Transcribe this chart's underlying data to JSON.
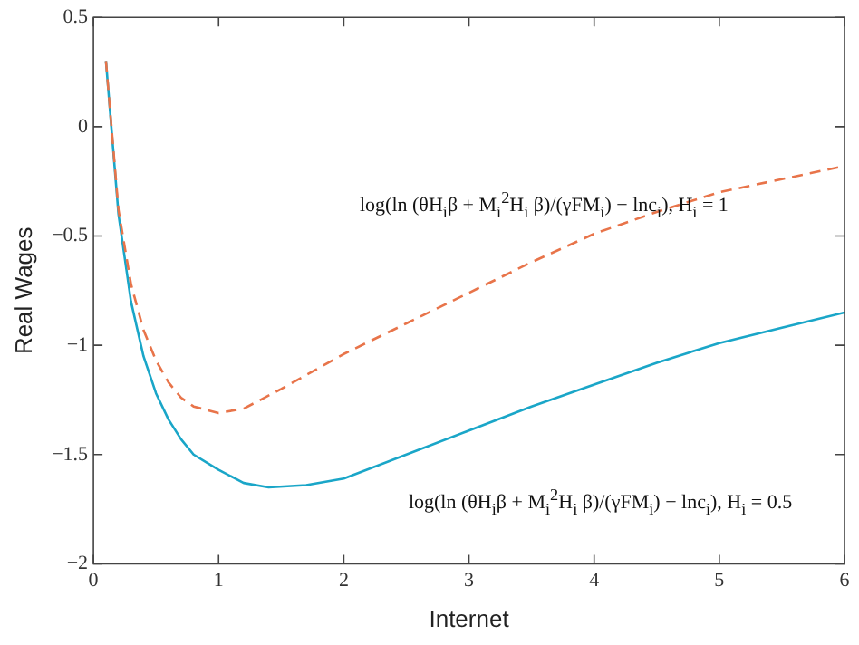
{
  "chart_data": {
    "type": "line",
    "xlabel": "Internet",
    "ylabel": "Real Wages",
    "xlim": [
      0,
      6
    ],
    "xticks": [
      0,
      1,
      2,
      3,
      4,
      5,
      6
    ],
    "ylim": [
      -2,
      0.5
    ],
    "yticks": [
      {
        "value": -2,
        "label": "−2"
      },
      {
        "value": -1.5,
        "label": "−1.5"
      },
      {
        "value": -1,
        "label": "−1"
      },
      {
        "value": -0.5,
        "label": "−0.5"
      },
      0,
      0.5
    ],
    "grid": false,
    "legend": false,
    "marker": "none",
    "series": [
      {
        "name": "log(ln (θH$_{i}$β + M$_{i}$$^{2}$H$_{i}$ β)/(γFM$_{i}$) − lnc$_{i}$), H$_{i}$ = 1",
        "color": "#e8744a",
        "line_style": "dashed",
        "x": [
          0.1,
          0.2,
          0.3,
          0.4,
          0.5,
          0.6,
          0.7,
          0.8,
          1.0,
          1.2,
          1.5,
          2,
          2.5,
          3,
          3.5,
          4,
          4.5,
          5,
          5.5,
          6
        ],
        "values": [
          0.3,
          -0.38,
          -0.72,
          -0.93,
          -1.07,
          -1.17,
          -1.24,
          -1.28,
          -1.31,
          -1.29,
          -1.2,
          -1.04,
          -0.9,
          -0.76,
          -0.62,
          -0.49,
          -0.39,
          -0.3,
          -0.24,
          -0.18
        ]
      },
      {
        "name": "log(ln (θH$_{i}$β + M$_{i}$$^{2}$H$_{i}$ β)/(γFM$_{i}$) − lnc$_{i}$), H$_{i}$ = 0.5",
        "color": "#1aa6c8",
        "line_style": "solid",
        "x": [
          0.1,
          0.2,
          0.3,
          0.4,
          0.5,
          0.6,
          0.7,
          0.8,
          1.0,
          1.2,
          1.4,
          1.7,
          2,
          2.5,
          3,
          3.5,
          4,
          4.5,
          5,
          5.5,
          6
        ],
        "values": [
          0.3,
          -0.4,
          -0.8,
          -1.05,
          -1.22,
          -1.34,
          -1.43,
          -1.5,
          -1.57,
          -1.63,
          -1.65,
          -1.64,
          -1.61,
          -1.5,
          -1.39,
          -1.28,
          -1.18,
          -1.08,
          -0.99,
          -0.92,
          -0.85
        ]
      }
    ]
  }
}
